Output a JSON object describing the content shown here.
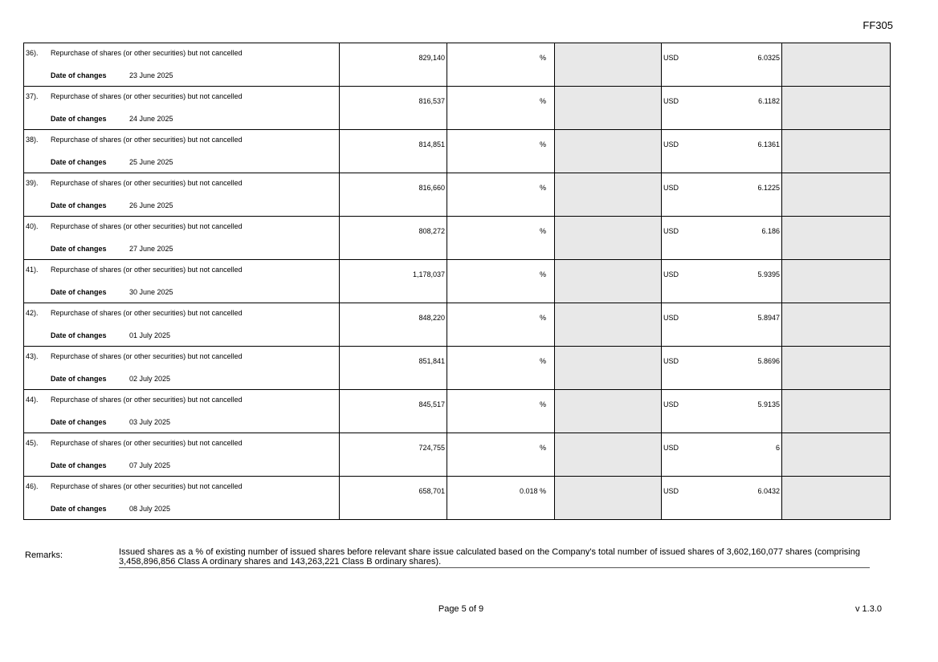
{
  "header": {
    "form_code": "FF305"
  },
  "date_label": "Date of changes",
  "rows": [
    {
      "num": "36).",
      "desc": "Repurchase of shares (or other securities) but not cancelled",
      "date": "23 June 2025",
      "shares": "829,140",
      "pct": "",
      "pct_sign": "%",
      "currency": "USD",
      "price": "6.0325"
    },
    {
      "num": "37).",
      "desc": "Repurchase of shares (or other securities) but not cancelled",
      "date": "24 June 2025",
      "shares": "816,537",
      "pct": "",
      "pct_sign": "%",
      "currency": "USD",
      "price": "6.1182"
    },
    {
      "num": "38).",
      "desc": "Repurchase of shares (or other securities) but not cancelled",
      "date": "25 June 2025",
      "shares": "814,851",
      "pct": "",
      "pct_sign": "%",
      "currency": "USD",
      "price": "6.1361"
    },
    {
      "num": "39).",
      "desc": "Repurchase of shares (or other securities) but not cancelled",
      "date": "26 June 2025",
      "shares": "816,660",
      "pct": "",
      "pct_sign": "%",
      "currency": "USD",
      "price": "6.1225"
    },
    {
      "num": "40).",
      "desc": "Repurchase of shares (or other securities) but not cancelled",
      "date": "27 June 2025",
      "shares": "808,272",
      "pct": "",
      "pct_sign": "%",
      "currency": "USD",
      "price": "6.186"
    },
    {
      "num": "41).",
      "desc": "Repurchase of shares (or other securities) but not cancelled",
      "date": "30 June 2025",
      "shares": "1,178,037",
      "pct": "",
      "pct_sign": "%",
      "currency": "USD",
      "price": "5.9395"
    },
    {
      "num": "42).",
      "desc": "Repurchase of shares (or other securities) but not cancelled",
      "date": "01 July 2025",
      "shares": "848,220",
      "pct": "",
      "pct_sign": "%",
      "currency": "USD",
      "price": "5.8947"
    },
    {
      "num": "43).",
      "desc": "Repurchase of shares (or other securities) but not cancelled",
      "date": "02 July 2025",
      "shares": "851,841",
      "pct": "",
      "pct_sign": "%",
      "currency": "USD",
      "price": "5.8696"
    },
    {
      "num": "44).",
      "desc": "Repurchase of shares (or other securities) but not cancelled",
      "date": "03 July 2025",
      "shares": "845,517",
      "pct": "",
      "pct_sign": "%",
      "currency": "USD",
      "price": "5.9135"
    },
    {
      "num": "45).",
      "desc": "Repurchase of shares (or other securities) but not cancelled",
      "date": "07 July 2025",
      "shares": "724,755",
      "pct": "",
      "pct_sign": "%",
      "currency": "USD",
      "price": "6"
    },
    {
      "num": "46).",
      "desc": "Repurchase of shares (or other securities) but not cancelled",
      "date": "08 July 2025",
      "shares": "658,701",
      "pct": "0.018",
      "pct_sign": "%",
      "currency": "USD",
      "price": "6.0432"
    }
  ],
  "remarks": {
    "label": "Remarks:",
    "text": "Issued shares as a % of existing number of issued shares before relevant share issue calculated based on the Company's total number of issued shares of 3,602,160,077 shares (comprising 3,458,896,856 Class A ordinary shares and 143,263,221 Class B ordinary shares)."
  },
  "footer": {
    "page": "Page 5 of 9",
    "version": "v 1.3.0"
  }
}
